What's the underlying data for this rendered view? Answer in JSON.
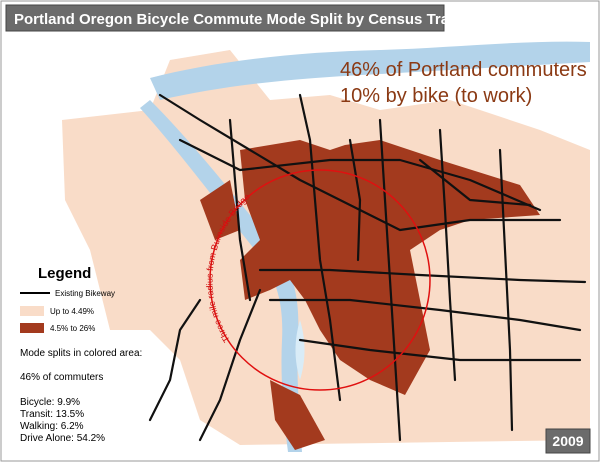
{
  "header": {
    "title": "Portland Oregon Bicycle Commute Mode Split by Census Tract"
  },
  "annotation": {
    "lines": [
      "46% of Portland commuters",
      "10% by bike (to work)"
    ]
  },
  "circle_label": "Three mile radius from Burnside Bridge",
  "legend": {
    "title": "Legend",
    "items": [
      "Existing Bikeway",
      "Up to 4.49%",
      "4.5% to 26%"
    ],
    "note": "Mode splits in colored area:",
    "share": "46% of commuters",
    "modes": [
      "Bicycle: 9.9%",
      "Transit: 13.5%",
      "Walking: 6.2%",
      "Drive Alone: 54.2%"
    ]
  },
  "year": "2009"
}
